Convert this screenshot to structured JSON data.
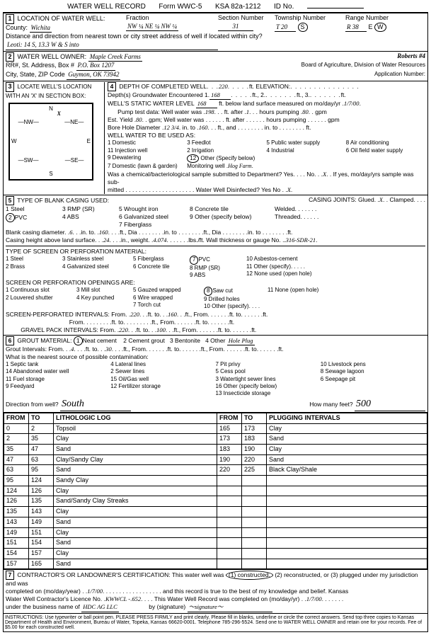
{
  "header": {
    "title": "WATER WELL RECORD",
    "form": "Form WWC-5",
    "ksa": "KSA 82a-1212",
    "id_label": "ID No."
  },
  "loc1": {
    "label": "LOCATION OF WATER WELL:",
    "county_label": "County:",
    "county": "Wichita",
    "fraction_label": "Fraction",
    "fraction": "NW ¼  NE ¼  NW ¼",
    "section_label": "Section Number",
    "section": "31",
    "township_label": "Township Number",
    "township": "T   20",
    "township_dir": "S",
    "range_label": "Range Number",
    "range": "R  38",
    "range_dir": "W",
    "dist_label": "Distance and direction from nearest town or city street address of well if located within city?",
    "dist": "Leoti:  14 S, 13.3 W & S into"
  },
  "owner": {
    "label": "WATER WELL OWNER:",
    "name": "Maple Creek Farms",
    "well_name": "Roberts #4",
    "addr_label": "RR#, St. Address, Box #",
    "addr": "P.O. Box 1207",
    "city_label": "City, State, ZIP Code",
    "city": "Guymon, OK  73942",
    "board": "Board of Agriculture, Division of Water Resources",
    "app_label": "Application Number:"
  },
  "sec3": {
    "label": "LOCATE WELL'S LOCATION WITH AN 'X' IN SECTION BOX:"
  },
  "sec4": {
    "depth_label": "DEPTH OF COMPLETED WELL",
    "depth": "220",
    "elev_label": "ELEVATION:",
    "gw_label": "Depth(s) Groundwater Encountered",
    "gw1": "168",
    "static_label": "WELL'S STATIC WATER LEVEL",
    "static": "168",
    "static_date": "1/7/00",
    "pump_label": "Pump test data: Well water was",
    "pump_ft": "198",
    "pump_hrs": "1",
    "pump_gpm": "80",
    "yield_label": "Est. Yield",
    "yield": "80",
    "bore_label": "Bore Hole Diameter",
    "bore": "12 3/4",
    "bore_to": "160",
    "use_label": "WELL WATER TO BE USED AS:",
    "uses": [
      "1 Domestic",
      "2 Irrigation",
      "3 Feedlot",
      "4 Industrial",
      "5 Public water supply",
      "6 Oil field water supply",
      "7 Domestic (lawn & garden)",
      "8 Air conditioning",
      "9 Dewatering",
      "Monitoring well",
      "11 Injection well",
      "12 Other (Specify below)"
    ],
    "mon_well": "Hog Farm",
    "chem_label": "Was a chemical/bacteriological sample submitted to Department? Yes",
    "chem_no": "No",
    "chem_x": "X",
    "disinfect": "Water Well Disinfected?  Yes      No",
    "disinfect_x": "X"
  },
  "sec5": {
    "label": "TYPE OF BLANK CASING USED:",
    "opts": [
      "1 Steel",
      "2 PVC",
      "3 RMP (SR)",
      "4 ABS",
      "5 Wrought iron",
      "6 Galvanized steel",
      "7 Fiberglass",
      "8 Concrete tile",
      "9 Other (specify below)"
    ],
    "joints_label": "CASING JOINTS: Glued",
    "joints_x": "X",
    "joints2": "Clamped",
    "joints3": "Welded",
    "joints4": "Threaded",
    "blank_dia_label": "Blank casing diameter",
    "blank_dia": "6",
    "blank_to": "160",
    "height_label": "Casing height above land surface",
    "height": "24",
    "weight_label": "in., weight",
    "weight": "4.074",
    "gauge_label": "lbs./ft. Wall thickness or gauge No.",
    "gauge": ".316-SDR-21",
    "screen_label": "TYPE OF SCREEN OR PERFORATION MATERIAL:",
    "screen_opts": [
      "1 Steel",
      "2 Brass",
      "3 Stainless steel",
      "4 Galvanized steel",
      "5 Fiberglass",
      "6 Concrete tile",
      "7 PVC",
      "8 RMP (SR)",
      "9 ABS",
      "10 Asbestos-cement",
      "11 Other (specify)",
      "12 None used (open hole)"
    ],
    "open_label": "SCREEN OR PERFORATION OPENINGS ARE:",
    "open_opts": [
      "1 Continuous slot",
      "2 Louvered shutter",
      "3 Mill slot",
      "4 Key punched",
      "5 Gauzed wrapped",
      "6 Wire wrapped",
      "7 Torch cut",
      "8 Saw cut",
      "9 Drilled holes",
      "10 Other (specify)",
      "11 None (open hole)"
    ],
    "interval1_label": "SCREEN-PERFORATED INTERVALS: From",
    "int1_from": "220",
    "int1_to": "160",
    "gravel_label": "GRAVEL PACK INTERVALS: From",
    "grav_from": "220",
    "grav_to": "100"
  },
  "sec6": {
    "label": "GROUT MATERIAL:",
    "opts": [
      "1 Neat cement",
      "2 Cement grout",
      "3 Bentonite",
      "4 Other"
    ],
    "other": "Hole Plug",
    "grout_int_label": "Grout Intervals: From",
    "gi_from": "4",
    "gi_to": "30",
    "contam_label": "What is the nearest source of possible contamination:",
    "contam_opts": [
      "1 Septic tank",
      "2 Sewer lines",
      "3 Watertight sewer lines",
      "4 Lateral lines",
      "5 Cess pool",
      "6 Seepage pit",
      "7 Pit privy",
      "8 Sewage lagoon",
      "9 Feedyard",
      "10 Livestock pens",
      "11 Fuel storage",
      "12 Fertilizer storage",
      "13 Insecticide storage",
      "14 Abandoned water well",
      "15 Oil/Gas well",
      "16 Other (specify below)"
    ],
    "dir_label": "Direction from well?",
    "dir": "South",
    "dist_label": "How many feet?",
    "dist": "500"
  },
  "log": {
    "headers": [
      "FROM",
      "TO",
      "LITHOLOGIC LOG",
      "FROM",
      "TO",
      "PLUGGING INTERVALS"
    ],
    "rows": [
      [
        "0",
        "2",
        "Topsoil",
        "165",
        "173",
        "Clay"
      ],
      [
        "2",
        "35",
        "Clay",
        "173",
        "183",
        "Sand"
      ],
      [
        "35",
        "47",
        "Sand",
        "183",
        "190",
        "Clay"
      ],
      [
        "47",
        "63",
        "Clay/Sandy Clay",
        "190",
        "220",
        "Sand"
      ],
      [
        "63",
        "95",
        "Sand",
        "220",
        "225",
        "Black Clay/Shale"
      ],
      [
        "95",
        "124",
        "Sandy Clay",
        "",
        "",
        ""
      ],
      [
        "124",
        "126",
        "Clay",
        "",
        "",
        ""
      ],
      [
        "126",
        "135",
        "Sand/Sandy Clay Streaks",
        "",
        "",
        ""
      ],
      [
        "135",
        "143",
        "Clay",
        "",
        "",
        ""
      ],
      [
        "143",
        "149",
        "Sand",
        "",
        "",
        ""
      ],
      [
        "149",
        "151",
        "Clay",
        "",
        "",
        ""
      ],
      [
        "151",
        "154",
        "Sand",
        "",
        "",
        ""
      ],
      [
        "154",
        "157",
        "Clay",
        "",
        "",
        ""
      ],
      [
        "157",
        "165",
        "Sand",
        "",
        "",
        ""
      ]
    ]
  },
  "sec7": {
    "label": "CONTRACTOR'S OR LANDOWNER'S CERTIFICATION: This water well was",
    "opt1": "(1) constructed,",
    "opt2": "(2) reconstructed, or (3) plugged under my jurisdiction and was",
    "date_label": "completed on (mo/day/year)",
    "date": "1/7/00",
    "stmt": "and this record is true to the best of my knowledge and belief. Kansas",
    "lic_label": "Water Well Contractor's Licence No.",
    "lic_pre": "KWWCL -",
    "lic": "652",
    "rec_label": "This Water Well Record was completed on (mo/day/yr)",
    "rec_date": "1/7/00",
    "bus_label": "under the business name of",
    "bus": "HDC AG LLC",
    "sig_label": "by (signature)"
  },
  "footer": "INSTRUCTIONS: Use typewriter or ball point pen. PLEASE PRESS FIRMLY and print clearly. Please fill in blanks, underline or circle the correct answers. Send top three copies to Kansas Department of Health and Environment, Bureau of Water, Topeka, Kansas 66620-0001. Telephone 785-296-5524. Send one to WATER WELL OWNER and retain one for your records. Fee of $5.00 for each constructed well."
}
